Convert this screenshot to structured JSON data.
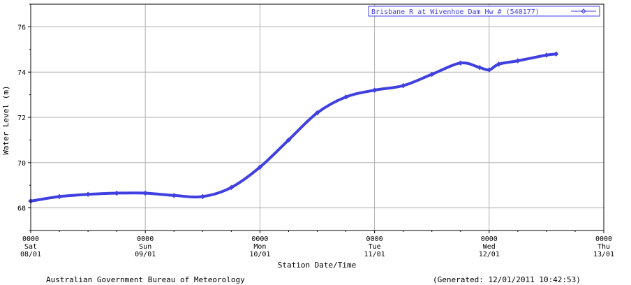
{
  "chart_data": {
    "type": "line",
    "title": "",
    "xlabel": "Station Date/Time",
    "ylabel": "Water Level (m)",
    "x_range": [
      "2011-01-08 00:00",
      "2011-01-13 00:00"
    ],
    "ylim": [
      67,
      77
    ],
    "y_ticks": [
      68,
      70,
      72,
      74,
      76
    ],
    "x_ticks": [
      {
        "time": "0000",
        "day": "Sat",
        "date": "08/01"
      },
      {
        "time": "0000",
        "day": "Sun",
        "date": "09/01"
      },
      {
        "time": "0000",
        "day": "Mon",
        "date": "10/01"
      },
      {
        "time": "0000",
        "day": "Tue",
        "date": "11/01"
      },
      {
        "time": "0000",
        "day": "Wed",
        "date": "12/01"
      },
      {
        "time": "0000",
        "day": "Thu",
        "date": "13/01"
      }
    ],
    "grid": true,
    "legend_position": "top-right",
    "series": [
      {
        "name": "Brisbane R at Wivenhoe Dam Hw # (540177)",
        "color": "#4040e0",
        "x": [
          "2011-01-08 00:00",
          "2011-01-08 06:00",
          "2011-01-08 12:00",
          "2011-01-08 18:00",
          "2011-01-09 00:00",
          "2011-01-09 06:00",
          "2011-01-09 12:00",
          "2011-01-09 18:00",
          "2011-01-10 00:00",
          "2011-01-10 06:00",
          "2011-01-10 12:00",
          "2011-01-10 18:00",
          "2011-01-11 00:00",
          "2011-01-11 06:00",
          "2011-01-11 12:00",
          "2011-01-11 18:00",
          "2011-01-11 22:00",
          "2011-01-12 00:00",
          "2011-01-12 02:00",
          "2011-01-12 06:00",
          "2011-01-12 12:00",
          "2011-01-12 14:00"
        ],
        "values": [
          68.3,
          68.5,
          68.6,
          68.65,
          68.65,
          68.55,
          68.5,
          68.9,
          69.8,
          71.0,
          72.2,
          72.9,
          73.2,
          73.4,
          73.9,
          74.4,
          74.2,
          74.1,
          74.35,
          74.5,
          74.75,
          74.8
        ]
      }
    ]
  },
  "footer": {
    "source": "Australian Government Bureau of Meteorology",
    "generated": "(Generated: 12/01/2011 10:42:53)"
  }
}
